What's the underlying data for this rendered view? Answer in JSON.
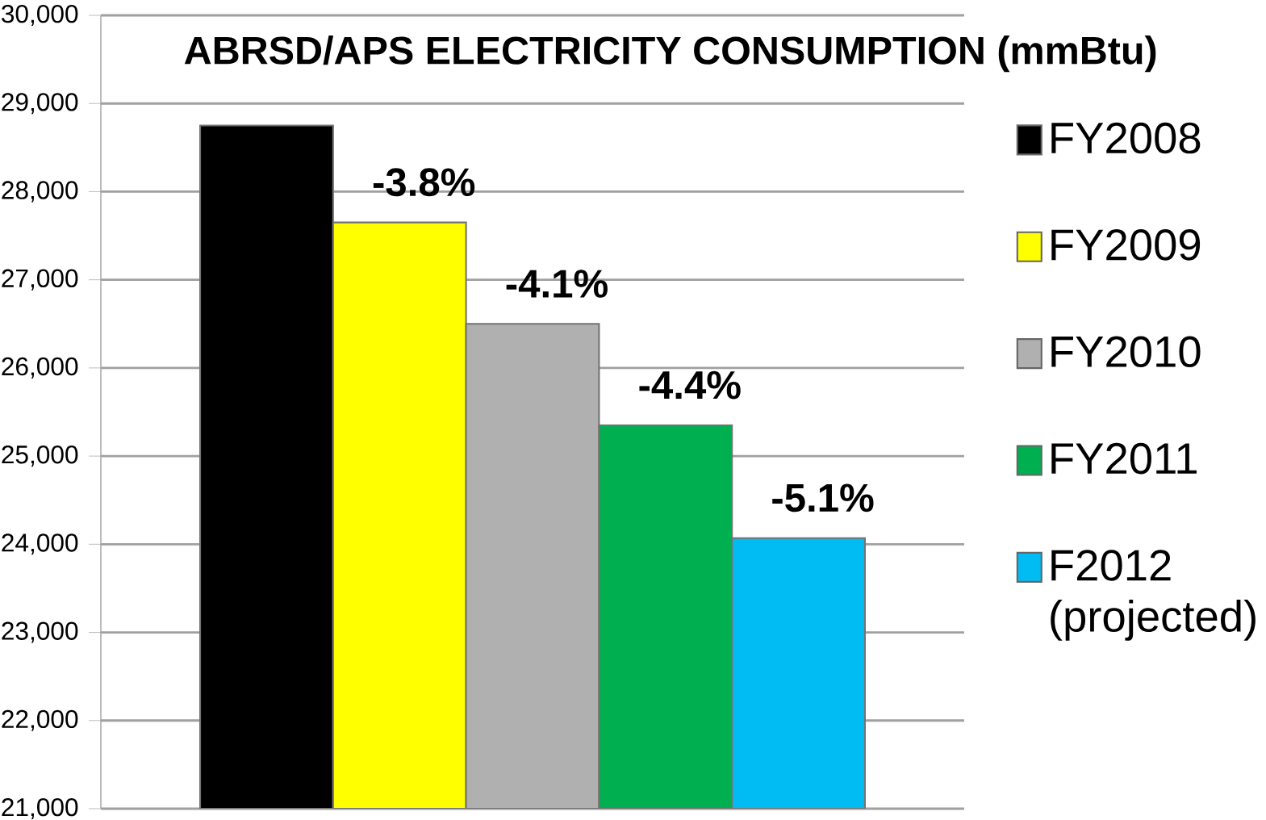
{
  "chart_data": {
    "type": "bar",
    "title": "ABRSD/APS ELECTRICITY CONSUMPTION  (mmBtu)",
    "categories": [
      null
    ],
    "series": [
      {
        "name": "FY2008",
        "color": "#000000",
        "values": [
          28750
        ]
      },
      {
        "name": "FY2009",
        "color": "#ffff00",
        "values": [
          27650
        ]
      },
      {
        "name": "FY2010",
        "color": "#b0b0b0",
        "values": [
          26500
        ]
      },
      {
        "name": "FY2011",
        "color": "#00b050",
        "values": [
          25350
        ]
      },
      {
        "name": "F2012 (projected)",
        "color": "#00bcf2",
        "values": [
          24070
        ]
      }
    ],
    "ylim": [
      21000,
      30000
    ],
    "yticks": [
      {
        "value": 21000,
        "label": "21,000"
      },
      {
        "value": 22000,
        "label": "22,000"
      },
      {
        "value": 23000,
        "label": "23,000"
      },
      {
        "value": 24000,
        "label": "24,000"
      },
      {
        "value": 25000,
        "label": "25,000"
      },
      {
        "value": 26000,
        "label": "26,000"
      },
      {
        "value": 27000,
        "label": "27,000"
      },
      {
        "value": 28000,
        "label": "28,000"
      },
      {
        "value": 29000,
        "label": "29,000"
      },
      {
        "value": 30000,
        "label": "30,000"
      }
    ],
    "grid": "y",
    "legend": "right",
    "tick_labels": "y",
    "annotations": [
      "-3.8%",
      "-4.1%",
      "-4.4%",
      "-5.1%"
    ]
  }
}
